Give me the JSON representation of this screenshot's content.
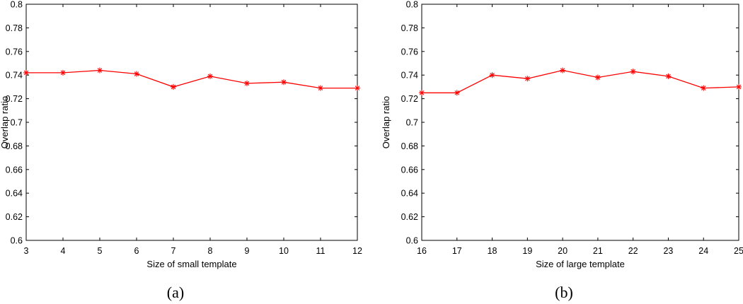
{
  "chart_data": [
    {
      "type": "line",
      "caption": "(a)",
      "xlabel": "Size of small template",
      "ylabel": "Overlap ratio",
      "x": [
        3,
        4,
        5,
        6,
        7,
        8,
        9,
        10,
        11,
        12
      ],
      "xlim": [
        3,
        12
      ],
      "xticks": [
        "3",
        "4",
        "5",
        "6",
        "7",
        "8",
        "9",
        "10",
        "11",
        "12"
      ],
      "ylim": [
        0.6,
        0.8
      ],
      "yticks": [
        "0.6",
        "0.62",
        "0.64",
        "0.66",
        "0.68",
        "0.7",
        "0.72",
        "0.74",
        "0.76",
        "0.78",
        "0.8"
      ],
      "grid": false,
      "series": [
        {
          "values": [
            0.742,
            0.742,
            0.744,
            0.741,
            0.73,
            0.739,
            0.733,
            0.734,
            0.729,
            0.729
          ],
          "color": "#ff0000",
          "marker": "*"
        }
      ]
    },
    {
      "type": "line",
      "caption": "(b)",
      "xlabel": "Size of large template",
      "ylabel": "Overlap ratio",
      "x": [
        16,
        17,
        18,
        19,
        20,
        21,
        22,
        23,
        24,
        25
      ],
      "xlim": [
        16,
        25
      ],
      "xticks": [
        "16",
        "17",
        "18",
        "19",
        "20",
        "21",
        "22",
        "23",
        "24",
        "25"
      ],
      "ylim": [
        0.6,
        0.8
      ],
      "yticks": [
        "0.6",
        "0.62",
        "0.64",
        "0.66",
        "0.68",
        "0.7",
        "0.72",
        "0.74",
        "0.76",
        "0.78",
        "0.8"
      ],
      "grid": false,
      "series": [
        {
          "values": [
            0.725,
            0.725,
            0.74,
            0.737,
            0.744,
            0.738,
            0.743,
            0.739,
            0.729,
            0.73
          ],
          "color": "#ff0000",
          "marker": "*"
        }
      ]
    }
  ]
}
